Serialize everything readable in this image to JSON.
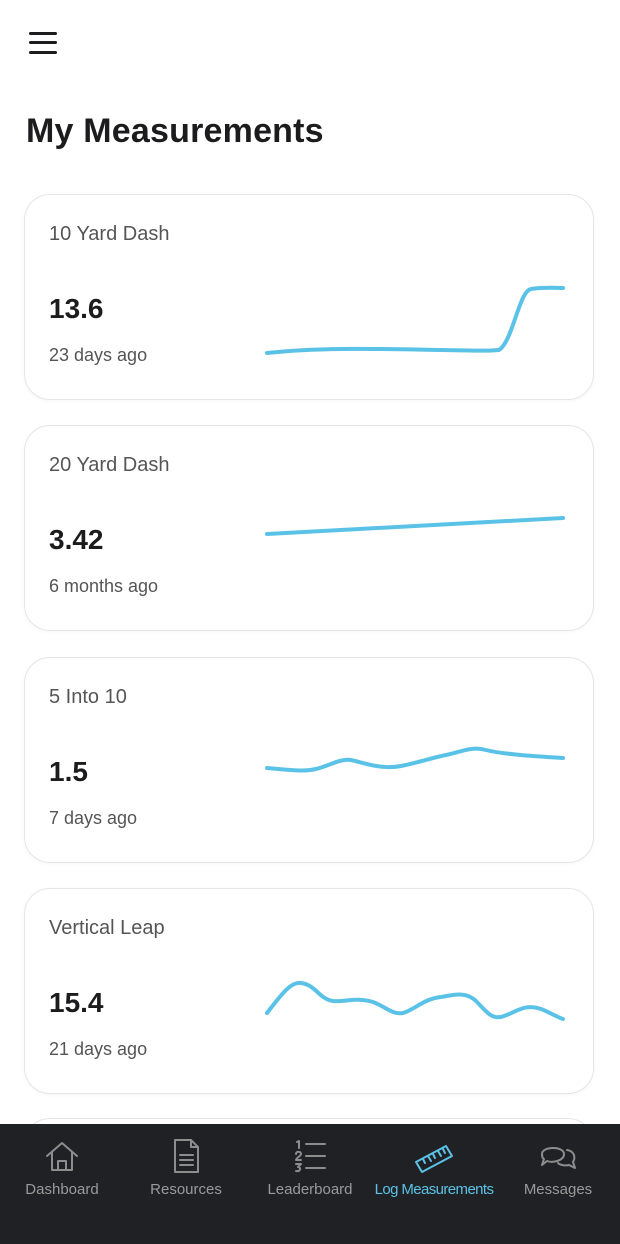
{
  "header": {
    "title": "My Measurements",
    "menu_icon": "hamburger-menu-icon"
  },
  "accent_color": "#5bc2e7",
  "cards": [
    {
      "title": "10 Yard Dash",
      "value": "13.6",
      "time": "23 days ago",
      "trend": [
        0.08,
        0.11,
        0.11,
        0.1,
        0.1,
        0.1,
        0.1,
        0.1,
        0.14,
        0.97,
        1.0
      ]
    },
    {
      "title": "20 Yard Dash",
      "value": "3.42",
      "time": "6 months ago",
      "trend": [
        0.0,
        1.0
      ]
    },
    {
      "title": "5 Into 10",
      "value": "1.5",
      "time": "7 days ago",
      "trend": [
        0.35,
        0.28,
        0.74,
        0.42,
        0.7,
        1.0,
        0.85,
        0.72
      ]
    },
    {
      "title": "Vertical Leap",
      "value": "15.4",
      "time": "21 days ago",
      "trend": [
        0.25,
        0.95,
        0.55,
        0.56,
        0.27,
        0.66,
        0.75,
        0.02,
        0.43,
        0.0
      ]
    }
  ],
  "tabs": [
    {
      "label": "Dashboard",
      "icon": "home-icon",
      "active": false
    },
    {
      "label": "Resources",
      "icon": "document-icon",
      "active": false
    },
    {
      "label": "Leaderboard",
      "icon": "numbered-list-icon",
      "active": false
    },
    {
      "label": "Log Measurements",
      "icon": "ruler-icon",
      "active": true
    },
    {
      "label": "Messages",
      "icon": "chat-bubbles-icon",
      "active": false
    }
  ]
}
